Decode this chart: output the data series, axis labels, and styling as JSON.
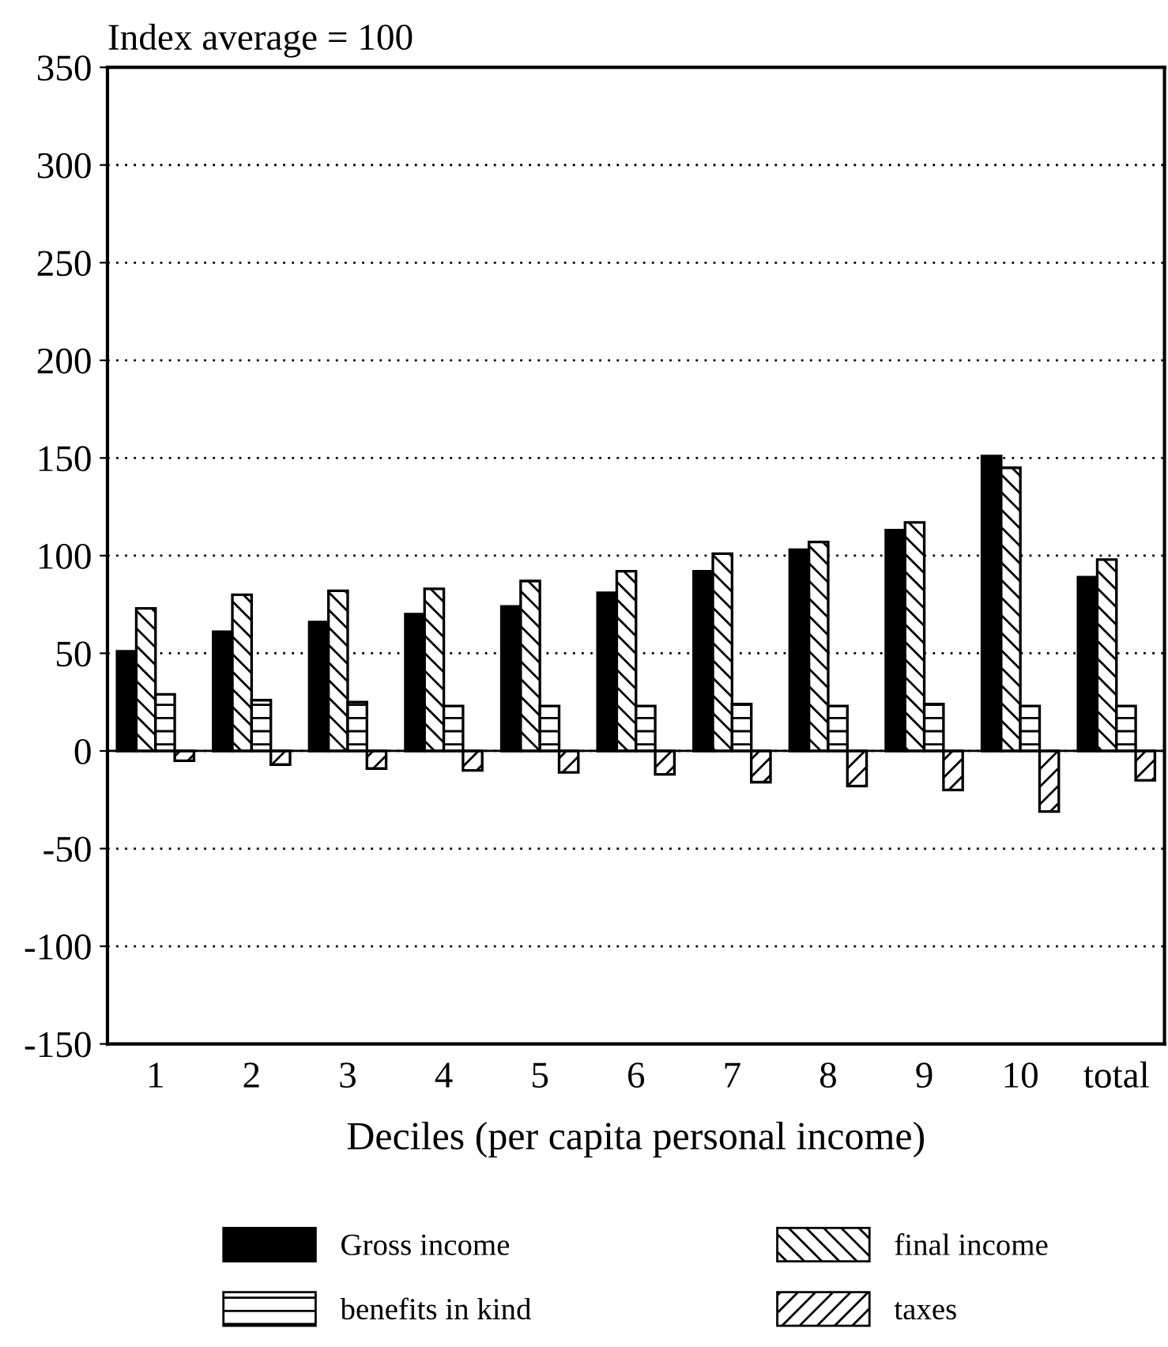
{
  "chart_data": {
    "type": "bar",
    "ylabel": "Index average = 100",
    "xlabel": "Deciles (per capita personal income)",
    "categories": [
      "1",
      "2",
      "3",
      "4",
      "5",
      "6",
      "7",
      "8",
      "9",
      "10",
      "total"
    ],
    "series": [
      {
        "name": "Gross income",
        "color": "#000000",
        "values": [
          51,
          61,
          66,
          70,
          74,
          81,
          92,
          103,
          113,
          151,
          89
        ]
      },
      {
        "name": "final income",
        "color": "#000000",
        "values": [
          73,
          80,
          82,
          83,
          87,
          92,
          101,
          107,
          117,
          145,
          98
        ]
      },
      {
        "name": "benefits in kind",
        "color": "#000000",
        "values": [
          29,
          26,
          25,
          23,
          23,
          23,
          24,
          23,
          24,
          23,
          23
        ]
      },
      {
        "name": "taxes",
        "color": "#000000",
        "values": [
          -5,
          -7,
          -9,
          -10,
          -11,
          -12,
          -16,
          -18,
          -20,
          -31,
          -15
        ]
      }
    ],
    "ylim": [
      -150,
      350
    ],
    "yticks": [
      -150,
      -100,
      -50,
      0,
      50,
      100,
      150,
      200,
      250,
      300,
      350
    ],
    "grid": "y",
    "legend": "bottom"
  }
}
